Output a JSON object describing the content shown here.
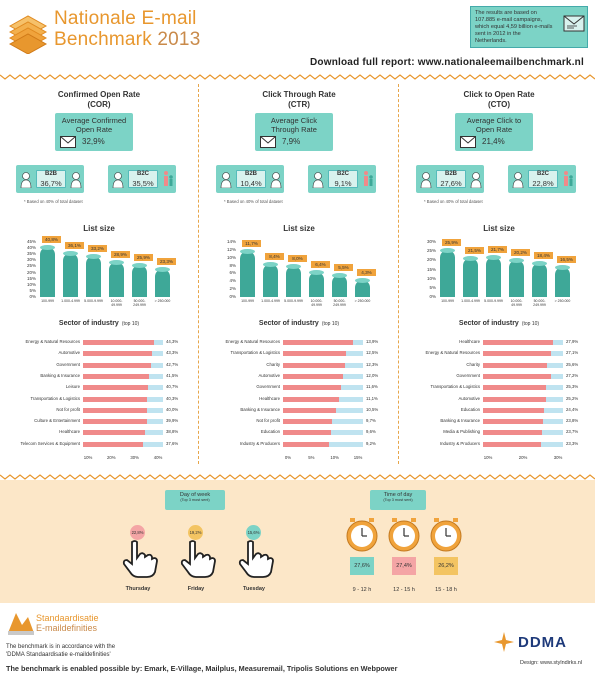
{
  "header": {
    "title_line1": "Nationale E-mail",
    "title_line2": "Benchmark",
    "year": "2013",
    "info_text": "The results are based on 107.885 e-mail campaigns, which equal 4,59 billion e-mails sent in 2012 in the Netherlands.",
    "download": "Download full report: www.nationaleemailbenchmark.nl"
  },
  "columns": [
    {
      "title": "Confirmed Open Rate",
      "abbr": "(COR)",
      "avg_label": "Average Confirmed Open Rate",
      "avg_value": "32,9%",
      "b2b_label": "B2B",
      "b2b_value": "36,7%",
      "b2c_label": "B2C",
      "b2c_value": "35,5%",
      "note": "* Based on 40% of total dataset",
      "list_title": "List size",
      "list_yticks": [
        "45%",
        "40%",
        "35%",
        "30%",
        "25%",
        "20%",
        "15%",
        "10%",
        "5%",
        "0%"
      ],
      "list_values": [
        "40,8%",
        "36,1%",
        "33,2%",
        "28,9%",
        "25,9%",
        "23,3%"
      ],
      "list_nums": [
        40.8,
        36.1,
        33.2,
        28.9,
        25.9,
        23.3
      ],
      "list_max": 45,
      "list_cats": [
        "100-999",
        "1.000-4.999",
        "5.000-9.999",
        "10.000-49.999",
        "50.000-249.999",
        "> 250.000"
      ],
      "sector_title": "Sector of industry",
      "sector_sub": "(top 10)",
      "sectors": [
        "Energy & Natural Resources",
        "Automotive",
        "Government",
        "Banking & Insurance",
        "Leisure",
        "Transportation & Logistics",
        "Not for profit",
        "Culture & Entertainment",
        "Healthcare",
        "Telecom Services & Equipment"
      ],
      "sector_values": [
        "44,3%",
        "43,3%",
        "42,7%",
        "41,5%",
        "40,7%",
        "40,3%",
        "40,0%",
        "39,9%",
        "38,8%",
        "37,6%"
      ],
      "sector_nums": [
        44.3,
        43.3,
        42.7,
        41.5,
        40.7,
        40.3,
        40.0,
        39.9,
        38.8,
        37.6
      ],
      "sector_max": 50,
      "sector_ticks": [
        "10%",
        "20%",
        "30%",
        "40%"
      ]
    },
    {
      "title": "Click Through Rate",
      "abbr": "(CTR)",
      "avg_label": "Average Click Through Rate",
      "avg_value": "7,9%",
      "b2b_label": "B2B",
      "b2b_value": "10,4%",
      "b2c_label": "B2C",
      "b2c_value": "9,1%",
      "note": "* Based on 40% of total dataset",
      "list_title": "List size",
      "list_yticks": [
        "14%",
        "12%",
        "10%",
        "8%",
        "6%",
        "4%",
        "2%",
        "0%"
      ],
      "list_values": [
        "11,7%",
        "8,4%",
        "8,0%",
        "6,4%",
        "5,5%",
        "4,3%"
      ],
      "list_nums": [
        11.7,
        8.4,
        8.0,
        6.4,
        5.5,
        4.3
      ],
      "list_max": 14,
      "list_cats": [
        "100-999",
        "1.000-4.999",
        "5.000-9.999",
        "10.000-49.999",
        "50.000-249.999",
        "> 250.000"
      ],
      "sector_title": "Sector of industry",
      "sector_sub": "(top 10)",
      "sectors": [
        "Energy & Natural Resources",
        "Transportation & Logistics",
        "Charity",
        "Automotive",
        "Government",
        "Healthcare",
        "Banking & Insurance",
        "Not for profit",
        "Education",
        "Industry & Producers"
      ],
      "sector_values": [
        "13,9%",
        "12,5%",
        "12,3%",
        "12,0%",
        "11,6%",
        "11,1%",
        "10,5%",
        "9,7%",
        "9,6%",
        "9,2%"
      ],
      "sector_nums": [
        13.9,
        12.5,
        12.3,
        12.0,
        11.6,
        11.1,
        10.5,
        9.7,
        9.6,
        9.2
      ],
      "sector_max": 16,
      "sector_ticks": [
        "0%",
        "5%",
        "10%",
        "15%"
      ]
    },
    {
      "title": "Click to Open Rate",
      "abbr": "(CTO)",
      "avg_label": "Average Click to Open Rate",
      "avg_value": "21,4%",
      "b2b_label": "B2B",
      "b2b_value": "27,6%",
      "b2c_label": "B2C",
      "b2c_value": "22,8%",
      "note": "* Based on 40% of total dataset",
      "list_title": "List size",
      "list_yticks": [
        "30%",
        "25%",
        "20%",
        "15%",
        "10%",
        "5%",
        "0%"
      ],
      "list_values": [
        "25,9%",
        "21,5%",
        "21,7%",
        "20,2%",
        "18,4%",
        "16,5%"
      ],
      "list_nums": [
        25.9,
        21.5,
        21.7,
        20.2,
        18.4,
        16.5
      ],
      "list_max": 30,
      "list_cats": [
        "100-999",
        "1.000-4.999",
        "5.000-9.999",
        "10.000-49.999",
        "50.000-249.999",
        "> 250.000"
      ],
      "sector_title": "Sector of industry",
      "sector_sub": "(top 10)",
      "sectors": [
        "Healthcare",
        "Energy & Natural Resources",
        "Charity",
        "Government",
        "Transportation & Logistics",
        "Automotive",
        "Education",
        "Banking & Insurance",
        "Media & Publishing",
        "Industry & Producers"
      ],
      "sector_values": [
        "27,9%",
        "27,1%",
        "25,6%",
        "27,2%",
        "25,3%",
        "25,2%",
        "24,4%",
        "23,8%",
        "23,7%",
        "23,3%"
      ],
      "sector_nums": [
        27.9,
        27.1,
        25.6,
        27.2,
        25.3,
        25.2,
        24.4,
        23.8,
        23.7,
        23.3
      ],
      "sector_max": 32,
      "sector_ticks": [
        "10%",
        "20%",
        "30%"
      ]
    }
  ],
  "day_of_week": {
    "title": "Day of week",
    "sub": "(Top 3 most sent)",
    "days": [
      {
        "name": "Thursday",
        "value": "22,8%",
        "color": "#f4a5a5"
      },
      {
        "name": "Friday",
        "value": "19,2%",
        "color": "#f3c462"
      },
      {
        "name": "Tuesday",
        "value": "15,6%",
        "color": "#7cd3c6"
      }
    ]
  },
  "time_of_day": {
    "title": "Time of day",
    "sub": "(Top 3 most sent)",
    "slots": [
      {
        "name": "9 - 12 h",
        "value": "27,6%",
        "color": "#7cd3c6"
      },
      {
        "name": "12 - 15 h",
        "value": "27,4%",
        "color": "#f4a5a5"
      },
      {
        "name": "15 - 18 h",
        "value": "26,2%",
        "color": "#f3c462"
      }
    ]
  },
  "footer": {
    "logo_text1": "Standaardisatie",
    "logo_text2": "E-maildefinities",
    "line1": "The benchmark is in accordance with the",
    "line2": "'DDMA Standaardisatie e-maildefinities'",
    "line3": "The benchmark is enabled possible by: Emark, E-Village, Mailplus, Measuremail, Tripolis Solutions en Webpower",
    "ddma": "DDMA",
    "design": "Design: www.stylndirks.nl"
  },
  "colors": {
    "orange": "#e8972e",
    "teal": "#7cd3c6",
    "pink": "#f08a8a",
    "light_blue": "#bfe3f0"
  }
}
